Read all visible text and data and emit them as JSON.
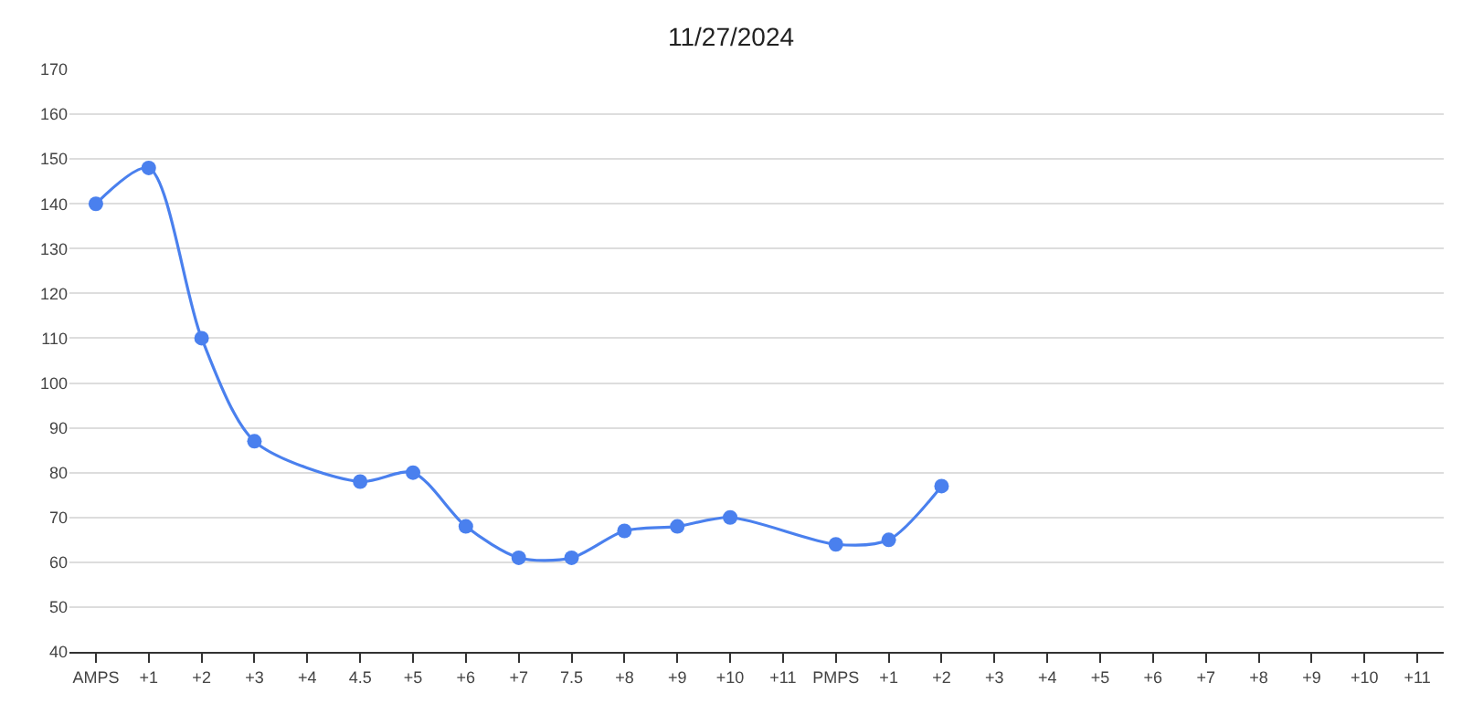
{
  "chart_data": {
    "type": "line",
    "title": "11/27/2024",
    "categories": [
      "AMPS",
      "+1",
      "+2",
      "+3",
      "+4",
      "4.5",
      "+5",
      "+6",
      "+7",
      "7.5",
      "+8",
      "+9",
      "+10",
      "+11",
      "PMPS",
      "+1",
      "+2",
      "+3",
      "+4",
      "+5",
      "+6",
      "+7",
      "+8",
      "+9",
      "+10",
      "+11"
    ],
    "series": [
      {
        "color": "#4a80ee",
        "values": [
          140,
          148,
          110,
          87,
          null,
          78,
          80,
          68,
          61,
          61,
          67,
          68,
          70,
          null,
          64,
          65,
          77,
          null,
          null,
          null,
          null,
          null,
          null,
          null,
          null,
          null
        ]
      }
    ],
    "ylim": [
      40,
      170
    ],
    "yticks": [
      40,
      50,
      60,
      70,
      80,
      90,
      100,
      110,
      120,
      130,
      140,
      150,
      160,
      170
    ],
    "grid": "y",
    "legend": false,
    "marker": "circle",
    "line_style": "solid"
  }
}
